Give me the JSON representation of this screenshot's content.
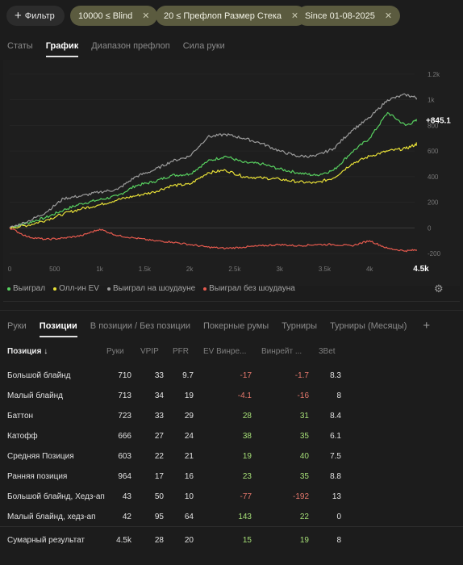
{
  "filters": {
    "button_label": "Фильтр",
    "chips": [
      "10000 ≤ Blind",
      "20 ≤ Префлоп Размер Стека",
      "Since 01-08-2025"
    ]
  },
  "top_tabs": [
    "Статы",
    "График",
    "Диапазон префлоп",
    "Сила руки"
  ],
  "top_tabs_active": 1,
  "chart_data": {
    "type": "line",
    "x_ticks": [
      "0",
      "500",
      "1k",
      "1.5k",
      "2k",
      "2.5k",
      "3k",
      "3.5k",
      "4k",
      "4.5k"
    ],
    "x_last_label": "4.5k",
    "y_ticks": [
      "1.2k",
      "1k",
      "800",
      "600",
      "400",
      "200",
      "0",
      "-200"
    ],
    "xlim": [
      0,
      4500
    ],
    "ylim": [
      -250,
      1250
    ],
    "end_label": "+845.1",
    "legend": [
      "Выиграл",
      "Олл-ин EV",
      "Выиграл на шоудауне",
      "Выиграл без шоудауна"
    ],
    "series": [
      {
        "name": "Выиграл",
        "color": "#58d160",
        "x": [
          0,
          200,
          400,
          600,
          800,
          1000,
          1200,
          1400,
          1600,
          1800,
          2000,
          2200,
          2400,
          2600,
          2800,
          3000,
          3200,
          3400,
          3600,
          3800,
          4000,
          4200,
          4400,
          4550
        ],
        "y": [
          0,
          40,
          80,
          140,
          190,
          220,
          250,
          330,
          360,
          410,
          420,
          520,
          560,
          510,
          500,
          460,
          430,
          410,
          450,
          590,
          700,
          900,
          800,
          845
        ]
      },
      {
        "name": "Олл-ин EV",
        "color": "#e8e037",
        "x": [
          0,
          200,
          400,
          600,
          800,
          1000,
          1200,
          1400,
          1600,
          1800,
          2000,
          2200,
          2400,
          2600,
          2800,
          3000,
          3200,
          3400,
          3600,
          3800,
          4000,
          4200,
          4400,
          4550
        ],
        "y": [
          0,
          20,
          60,
          110,
          150,
          180,
          220,
          250,
          280,
          330,
          340,
          430,
          450,
          400,
          390,
          380,
          360,
          350,
          390,
          500,
          560,
          600,
          620,
          660
        ]
      },
      {
        "name": "Выиграл на шоудауне",
        "color": "#9c9c9c",
        "x": [
          0,
          200,
          400,
          600,
          800,
          1000,
          1200,
          1400,
          1600,
          1800,
          2000,
          2200,
          2400,
          2600,
          2800,
          3000,
          3200,
          3400,
          3600,
          3800,
          4000,
          4200,
          4400,
          4550
        ],
        "y": [
          0,
          50,
          120,
          230,
          250,
          280,
          300,
          400,
          450,
          520,
          560,
          710,
          730,
          700,
          660,
          600,
          560,
          560,
          620,
          760,
          860,
          1000,
          1040,
          1010
        ]
      },
      {
        "name": "Выиграл без шоудауна",
        "color": "#e65a4e",
        "x": [
          0,
          200,
          400,
          600,
          800,
          1000,
          1200,
          1400,
          1600,
          1800,
          2000,
          2200,
          2400,
          2600,
          2800,
          3000,
          3200,
          3400,
          3600,
          3800,
          4000,
          4200,
          4400,
          4550
        ],
        "y": [
          0,
          -70,
          -90,
          -80,
          -60,
          -10,
          -60,
          -80,
          -100,
          -110,
          -130,
          -150,
          -160,
          -150,
          -140,
          -130,
          -140,
          -130,
          -130,
          -140,
          -100,
          -160,
          -180,
          -170
        ]
      }
    ]
  },
  "bottom_tabs": [
    "Руки",
    "Позиции",
    "В позиции / Без позиции",
    "Покерные румы",
    "Турниры",
    "Турниры (Месяцы)"
  ],
  "bottom_tabs_active": 1,
  "table": {
    "headers": [
      "Позиция ↓",
      "Руки",
      "VPIP",
      "PFR",
      "EV Винре...",
      "Винрейт ...",
      "3Bet"
    ],
    "rows": [
      {
        "name": "Большой блайнд",
        "hands": "710",
        "vpip": "33",
        "pfr": "9.7",
        "ev": "-17",
        "wr": "-1.7",
        "tb": "8.3",
        "ev_sign": "neg",
        "wr_sign": "neg"
      },
      {
        "name": "Малый блайнд",
        "hands": "713",
        "vpip": "34",
        "pfr": "19",
        "ev": "-4.1",
        "wr": "-16",
        "tb": "8",
        "ev_sign": "neg",
        "wr_sign": "neg"
      },
      {
        "name": "Баттон",
        "hands": "723",
        "vpip": "33",
        "pfr": "29",
        "ev": "28",
        "wr": "31",
        "tb": "8.4",
        "ev_sign": "pos",
        "wr_sign": "pos"
      },
      {
        "name": "Катофф",
        "hands": "666",
        "vpip": "27",
        "pfr": "24",
        "ev": "38",
        "wr": "35",
        "tb": "6.1",
        "ev_sign": "pos",
        "wr_sign": "pos"
      },
      {
        "name": "Средняя Позиция",
        "hands": "603",
        "vpip": "22",
        "pfr": "21",
        "ev": "19",
        "wr": "40",
        "tb": "7.5",
        "ev_sign": "pos",
        "wr_sign": "pos"
      },
      {
        "name": "Ранняя позиция",
        "hands": "964",
        "vpip": "17",
        "pfr": "16",
        "ev": "23",
        "wr": "35",
        "tb": "8.8",
        "ev_sign": "pos",
        "wr_sign": "pos"
      },
      {
        "name": "Большой блайнд, Хедз-ап",
        "hands": "43",
        "vpip": "50",
        "pfr": "10",
        "ev": "-77",
        "wr": "-192",
        "tb": "13",
        "ev_sign": "neg",
        "wr_sign": "neg"
      },
      {
        "name": "Малый блайнд, хедз-ап",
        "hands": "42",
        "vpip": "95",
        "pfr": "64",
        "ev": "143",
        "wr": "22",
        "tb": "0",
        "ev_sign": "pos",
        "wr_sign": "pos"
      }
    ],
    "summary": {
      "name": "Сумарный результат",
      "hands": "4.5k",
      "vpip": "28",
      "pfr": "20",
      "ev": "15",
      "wr": "19",
      "tb": "8",
      "ev_sign": "pos",
      "wr_sign": "pos"
    }
  }
}
